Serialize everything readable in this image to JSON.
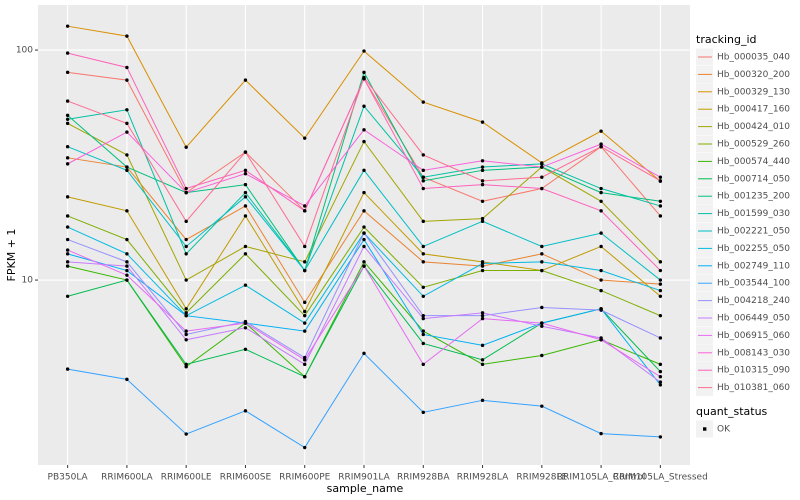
{
  "chart_data": {
    "type": "line",
    "log_y": true,
    "grid": true,
    "x_label": "sample_name",
    "y_label": "FPKM + 1",
    "legend_title": "tracking_id",
    "shape_legend": {
      "title": "quant_status",
      "labels": [
        "OK"
      ],
      "color": "#000000"
    },
    "categories": [
      "PB350LA",
      "RRIM600LA",
      "RRIM600LE",
      "RRIM600SE",
      "RRIM600PE",
      "RRIM901LA",
      "RRIM928BA",
      "RRIM928LA",
      "RRIM928LE",
      "RRIM105LA_Control",
      "RRIM105LA_Stressed"
    ],
    "ylim": [
      1.57,
      157
    ],
    "yticks": [
      10,
      100
    ],
    "series": [
      {
        "name": "Hb_000035_040",
        "color": "#F8766D",
        "values": [
          80,
          74,
          24,
          36,
          20,
          75,
          28,
          22,
          25,
          38,
          19
        ]
      },
      {
        "name": "Hb_000320_200",
        "color": "#EA8331",
        "values": [
          34,
          31,
          15,
          21,
          8,
          20,
          12,
          11.5,
          13,
          10,
          9.6
        ]
      },
      {
        "name": "Hb_000329_130",
        "color": "#D89000",
        "values": [
          127,
          115,
          37.8,
          74,
          41.4,
          99,
          59.4,
          48.6,
          32.3,
          44.4,
          26.9
        ]
      },
      {
        "name": "Hb_000417_160",
        "color": "#C09B00",
        "values": [
          23,
          20,
          7.5,
          19,
          7.3,
          24,
          13,
          12,
          11,
          14,
          8.5
        ]
      },
      {
        "name": "Hb_000424_010",
        "color": "#A3A500",
        "values": [
          48,
          35,
          10,
          14,
          12,
          40,
          18,
          18.5,
          31,
          22,
          12
        ]
      },
      {
        "name": "Hb_000529_260",
        "color": "#7CAE00",
        "values": [
          19,
          15,
          7.2,
          13,
          7,
          17,
          9.3,
          11,
          11,
          9,
          7
        ]
      },
      {
        "name": "Hb_000574_440",
        "color": "#39B600",
        "values": [
          11.5,
          10,
          4.2,
          6.5,
          3.8,
          12,
          6,
          4.3,
          4.7,
          5.5,
          4.3
        ]
      },
      {
        "name": "Hb_000714_050",
        "color": "#00BB4E",
        "values": [
          8.5,
          10,
          4.3,
          5,
          3.8,
          11.5,
          5.3,
          4.5,
          6.5,
          7.5,
          4
        ]
      },
      {
        "name": "Hb_001235_200",
        "color": "#00BF7D",
        "values": [
          52,
          31,
          24,
          26,
          11,
          80,
          27,
          30,
          31,
          24,
          22
        ]
      },
      {
        "name": "Hb_001599_030",
        "color": "#00C1A3",
        "values": [
          50,
          55,
          13,
          24,
          11,
          57,
          28,
          31,
          32,
          25,
          21
        ]
      },
      {
        "name": "Hb_002221_050",
        "color": "#00BFC4",
        "values": [
          38,
          30,
          14,
          23,
          11,
          30,
          14,
          18,
          14,
          16,
          10
        ]
      },
      {
        "name": "Hb_002255_050",
        "color": "#00BAE0",
        "values": [
          17,
          13,
          7,
          9.5,
          6.5,
          16,
          8.5,
          11.8,
          12,
          11,
          9
        ]
      },
      {
        "name": "Hb_002749_110",
        "color": "#00B0F6",
        "values": [
          13,
          11,
          7,
          6.5,
          6,
          15,
          5.8,
          5.2,
          6.5,
          7.5,
          3.5
        ]
      },
      {
        "name": "Hb_003544_100",
        "color": "#35A2FF",
        "values": [
          4.1,
          3.7,
          2.14,
          2.7,
          1.87,
          4.8,
          2.66,
          3.0,
          2.83,
          2.15,
          2.08
        ]
      },
      {
        "name": "Hb_004218_240",
        "color": "#9590FF",
        "values": [
          15,
          12,
          5.8,
          6.6,
          4.6,
          16,
          7,
          7,
          7.6,
          7.4,
          5.6
        ]
      },
      {
        "name": "Hb_006449_050",
        "color": "#C77CFF",
        "values": [
          12,
          11.5,
          5.5,
          6.2,
          4.3,
          14,
          6.8,
          7.2,
          6.3,
          5.6,
          3.6
        ]
      },
      {
        "name": "Hb_006915_060",
        "color": "#E76BF3",
        "values": [
          13.5,
          10.5,
          6,
          6.5,
          4.5,
          11.5,
          4.3,
          6.8,
          6.5,
          5.5,
          3.8
        ]
      },
      {
        "name": "Hb_008143_030",
        "color": "#FA62DB",
        "values": [
          32,
          44,
          24,
          29,
          21,
          45,
          30,
          33,
          31,
          39,
          28
        ]
      },
      {
        "name": "Hb_010315_090",
        "color": "#FF62BC",
        "values": [
          97,
          84,
          25,
          30,
          20,
          75,
          25,
          26,
          25,
          20,
          11
        ]
      },
      {
        "name": "Hb_010381_060",
        "color": "#FF6C91",
        "values": [
          60,
          48,
          18,
          36,
          14,
          76,
          35,
          27,
          28,
          38,
          27
        ]
      }
    ]
  }
}
